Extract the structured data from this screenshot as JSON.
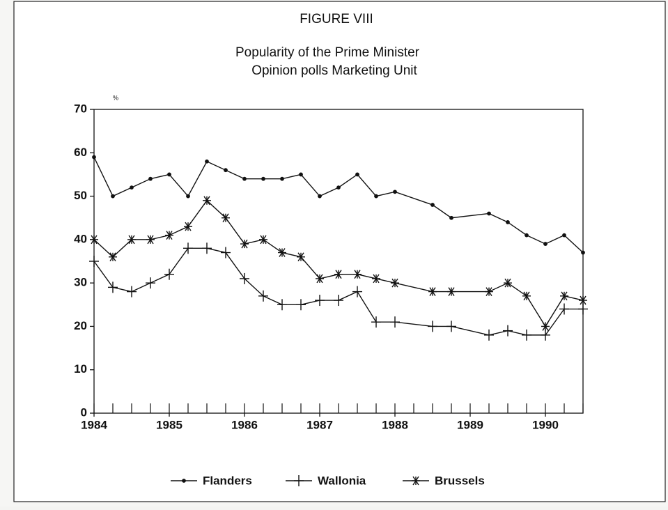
{
  "chart_data": {
    "type": "line",
    "label": "FIGURE VIII",
    "title": "Popularity of the Prime Minister",
    "subtitle": "Opinion polls Marketing Unit",
    "ylabel": "%",
    "x": [
      1984,
      1984.25,
      1984.5,
      1984.75,
      1985,
      1985.25,
      1985.5,
      1985.75,
      1986,
      1986.25,
      1986.5,
      1986.75,
      1987,
      1987.25,
      1987.5,
      1987.75,
      1988,
      1988.5,
      1988.75,
      1989.25,
      1989.5,
      1989.75,
      1990,
      1990.25,
      1990.5
    ],
    "series": [
      {
        "name": "Flanders",
        "color": "#111111",
        "marker": "dot",
        "values": [
          59,
          50,
          52,
          54,
          55,
          50,
          58,
          56,
          54,
          54,
          54,
          55,
          50,
          52,
          55,
          50,
          51,
          48,
          45,
          46,
          44,
          41,
          39,
          41,
          37
        ]
      },
      {
        "name": "Wallonia",
        "color": "#111111",
        "marker": "plus",
        "values": [
          35,
          29,
          28,
          30,
          32,
          38,
          38,
          37,
          31,
          27,
          25,
          25,
          26,
          26,
          28,
          21,
          21,
          20,
          20,
          18,
          19,
          18,
          18,
          24,
          24
        ]
      },
      {
        "name": "Brussels",
        "color": "#111111",
        "marker": "asterisk",
        "values": [
          40,
          36,
          40,
          40,
          41,
          43,
          49,
          45,
          39,
          40,
          37,
          36,
          31,
          32,
          32,
          31,
          30,
          28,
          28,
          28,
          30,
          27,
          20,
          27,
          26
        ]
      }
    ],
    "xlim": [
      1984,
      1990.5
    ],
    "xticks": [
      1984,
      1985,
      1986,
      1987,
      1988,
      1989,
      1990
    ],
    "xminorticks": [
      1984,
      1984.25,
      1984.5,
      1984.75,
      1985,
      1985.25,
      1985.5,
      1985.75,
      1986,
      1986.25,
      1986.5,
      1986.75,
      1987,
      1987.25,
      1987.5,
      1987.75,
      1988,
      1988.25,
      1988.5,
      1988.75,
      1989,
      1989.25,
      1989.5,
      1989.75,
      1990,
      1990.25,
      1990.5
    ],
    "ylim": [
      0,
      70
    ],
    "yticks": [
      0,
      10,
      20,
      30,
      40,
      50,
      60,
      70
    ],
    "grid": false,
    "legend": "bottom"
  }
}
